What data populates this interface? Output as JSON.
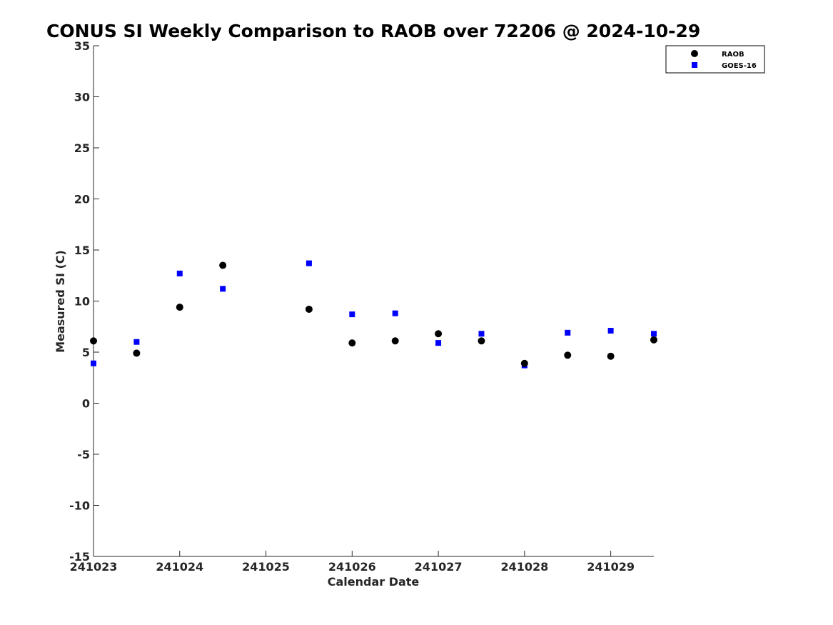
{
  "chart_data": {
    "type": "scatter",
    "title": "CONUS SI Weekly Comparison to RAOB over 72206 @ 2024-10-29",
    "xlabel": "Calendar Date",
    "ylabel": "Measured SI (C)",
    "xlim": [
      "2024-10-23",
      "2024-10-29 12:00"
    ],
    "ylim": [
      -15,
      35
    ],
    "x_tick_labels": [
      "241023",
      "241024",
      "241025",
      "241026",
      "241027",
      "241028",
      "241029"
    ],
    "y_ticks": [
      -15,
      -10,
      -5,
      0,
      5,
      10,
      15,
      20,
      25,
      30,
      35
    ],
    "grid": false,
    "legend_position": "top-right",
    "series": [
      {
        "name": "RAOB",
        "marker": "circle",
        "color": "#000000",
        "points": [
          {
            "x": "2024-10-23 00:00",
            "y": 6.1
          },
          {
            "x": "2024-10-23 12:00",
            "y": 4.9
          },
          {
            "x": "2024-10-24 00:00",
            "y": 9.4
          },
          {
            "x": "2024-10-24 12:00",
            "y": 13.5
          },
          {
            "x": "2024-10-25 12:00",
            "y": 9.2
          },
          {
            "x": "2024-10-26 00:00",
            "y": 5.9
          },
          {
            "x": "2024-10-26 12:00",
            "y": 6.1
          },
          {
            "x": "2024-10-27 00:00",
            "y": 6.8
          },
          {
            "x": "2024-10-27 12:00",
            "y": 6.1
          },
          {
            "x": "2024-10-28 00:00",
            "y": 3.9
          },
          {
            "x": "2024-10-28 12:00",
            "y": 4.7
          },
          {
            "x": "2024-10-29 00:00",
            "y": 4.6
          },
          {
            "x": "2024-10-29 12:00",
            "y": 6.2
          }
        ]
      },
      {
        "name": "GOES-16",
        "marker": "square",
        "color": "#0000ff",
        "points": [
          {
            "x": "2024-10-23 00:00",
            "y": 3.9
          },
          {
            "x": "2024-10-23 12:00",
            "y": 6.0
          },
          {
            "x": "2024-10-24 00:00",
            "y": 12.7
          },
          {
            "x": "2024-10-24 12:00",
            "y": 11.2
          },
          {
            "x": "2024-10-25 12:00",
            "y": 13.7
          },
          {
            "x": "2024-10-26 00:00",
            "y": 8.7
          },
          {
            "x": "2024-10-26 12:00",
            "y": 8.8
          },
          {
            "x": "2024-10-27 00:00",
            "y": 5.9
          },
          {
            "x": "2024-10-27 12:00",
            "y": 6.8
          },
          {
            "x": "2024-10-28 00:00",
            "y": 3.7
          },
          {
            "x": "2024-10-28 12:00",
            "y": 6.9
          },
          {
            "x": "2024-10-29 00:00",
            "y": 7.1
          },
          {
            "x": "2024-10-29 12:00",
            "y": 6.8
          }
        ]
      }
    ]
  }
}
